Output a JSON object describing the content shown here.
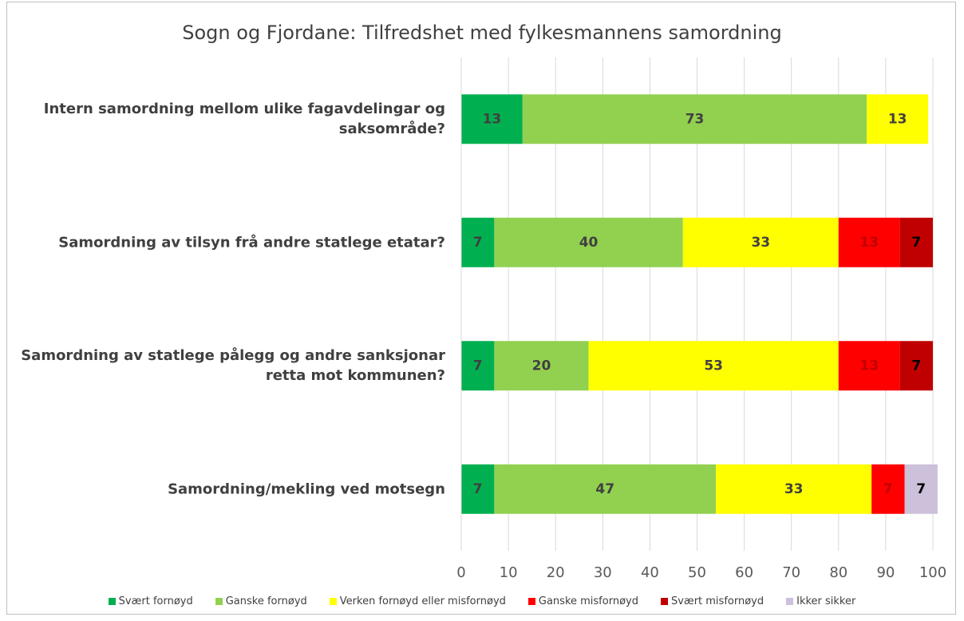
{
  "chart_data": {
    "type": "stacked_barh",
    "title": "Sogn og Fjordane: Tilfredshet med fylkesmannens samordning",
    "categories": [
      "Intern samordning mellom ulike fagavdelingar og saksområde?",
      "Samordning av tilsyn frå andre statlege etatar?",
      "Samordning av statlege pålegg og andre sanksjonar retta mot kommunen?",
      "Samordning/mekling ved motsegn"
    ],
    "series": [
      {
        "name": "Svært fornøyd",
        "color": "#00b050",
        "label_color": "#404040",
        "values": [
          13,
          7,
          7,
          7
        ]
      },
      {
        "name": "Ganske fornøyd",
        "color": "#92d050",
        "label_color": "#404040",
        "values": [
          73,
          40,
          20,
          47
        ]
      },
      {
        "name": "Verken fornøyd eller misfornøyd",
        "color": "#ffff00",
        "label_color": "#404040",
        "values": [
          13,
          33,
          53,
          33
        ]
      },
      {
        "name": "Ganske misfornøyd",
        "color": "#ff0000",
        "label_color": "#c00000",
        "values": [
          null,
          13,
          13,
          7
        ]
      },
      {
        "name": "Svært misfornøyd",
        "color": "#c00000",
        "label_color": "#000000",
        "values": [
          null,
          7,
          7,
          null
        ]
      },
      {
        "name": "Ikker sikker",
        "color": "#ccc0da",
        "label_color": "#000000",
        "values": [
          null,
          null,
          null,
          7
        ]
      }
    ],
    "xlim": [
      0,
      100
    ],
    "xticks": [
      0,
      10,
      20,
      30,
      40,
      50,
      60,
      70,
      80,
      90,
      100
    ],
    "grid": true
  }
}
